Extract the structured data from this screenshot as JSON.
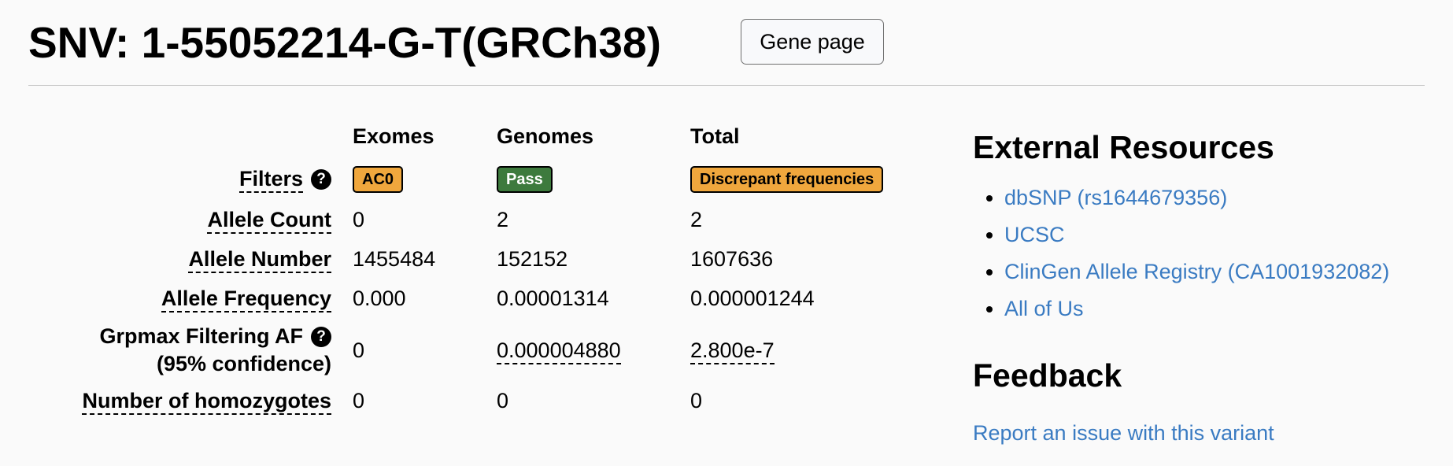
{
  "header": {
    "title": "SNV: 1-55052214-G-T(GRCh38)",
    "gene_button": "Gene page"
  },
  "table": {
    "columns": [
      "Exomes",
      "Genomes",
      "Total"
    ],
    "filters": {
      "label": "Filters",
      "help_icon": "?",
      "exomes": "AC0",
      "genomes": "Pass",
      "total": "Discrepant frequencies"
    },
    "allele_count": {
      "label": "Allele Count",
      "exomes": "0",
      "genomes": "2",
      "total": "2"
    },
    "allele_number": {
      "label": "Allele Number",
      "exomes": "1455484",
      "genomes": "152152",
      "total": "1607636"
    },
    "allele_frequency": {
      "label": "Allele Frequency",
      "exomes": "0.000",
      "genomes": "0.00001314",
      "total": "0.000001244"
    },
    "grpmax": {
      "label_line1": "Grpmax Filtering AF",
      "label_line2": "(95% confidence)",
      "help_icon": "?",
      "exomes": "0",
      "genomes": "0.000004880",
      "total": "2.800e-7"
    },
    "homozygotes": {
      "label": "Number of homozygotes",
      "exomes": "0",
      "genomes": "0",
      "total": "0"
    }
  },
  "external": {
    "title": "External Resources",
    "links": [
      "dbSNP (rs1644679356)",
      "UCSC",
      "ClinGen Allele Registry (CA1001932082)",
      "All of Us"
    ]
  },
  "feedback": {
    "title": "Feedback",
    "link": "Report an issue with this variant"
  },
  "colors": {
    "link": "#3a7bc2",
    "warn_badge": "#f0a73d",
    "pass_badge": "#3d7a3d",
    "background": "#fafafa"
  },
  "icons": {
    "help": "question-circle-icon",
    "bullet": "disc"
  }
}
